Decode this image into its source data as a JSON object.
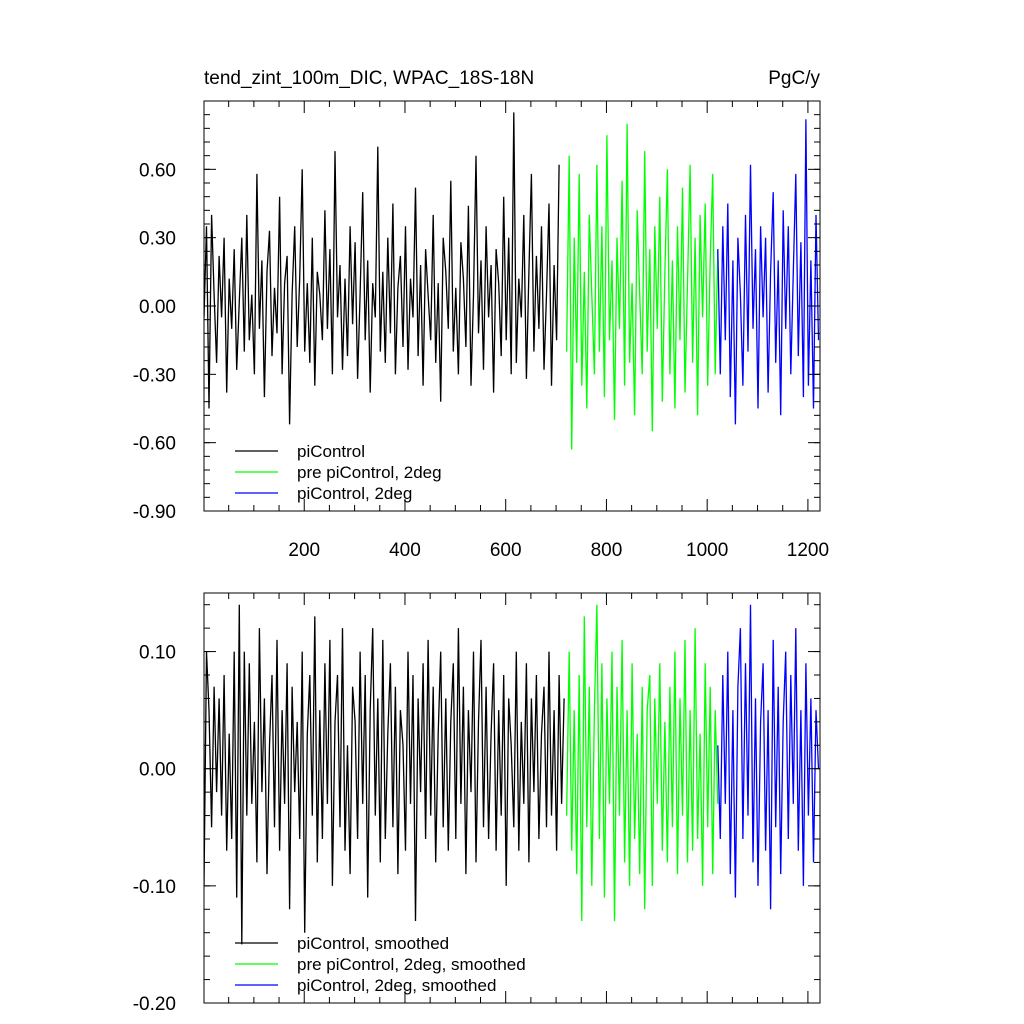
{
  "colors": {
    "piControl": "#000000",
    "pre_piControl_2deg": "#00ff00",
    "piControl_2deg": "#0000ff",
    "axis": "#000000",
    "background": "#ffffff"
  },
  "chart_data": [
    {
      "type": "line",
      "title": "tend_zint_100m_DIC, WPAC_18S-18N",
      "units": "PgC/y",
      "xlabel": "",
      "ylabel": "",
      "xlim": [
        1,
        1224
      ],
      "ylim": [
        -0.9,
        0.9
      ],
      "grid": false,
      "legend_position": "bottom-left",
      "x_ticks": [
        200,
        400,
        600,
        800,
        1000,
        1200
      ],
      "x_tick_labels": [
        "200",
        "400",
        "600",
        "800",
        "1000",
        "1200"
      ],
      "y_ticks": [
        -0.9,
        -0.6,
        -0.3,
        0.0,
        0.3,
        0.6
      ],
      "y_tick_labels": [
        "-0.90",
        "-0.60",
        "-0.30",
        "0.00",
        "0.30",
        "0.60"
      ],
      "series": [
        {
          "name": "piControl",
          "color": "#000000",
          "x_start": 1,
          "x_step": 5,
          "values": [
            -0.05,
            0.35,
            -0.45,
            0.4,
            0.05,
            -0.25,
            0.22,
            -0.05,
            0.3,
            -0.38,
            0.12,
            -0.1,
            0.25,
            -0.28,
            0.02,
            0.3,
            -0.2,
            0.4,
            -0.15,
            0.05,
            -0.3,
            0.58,
            -0.1,
            0.2,
            -0.4,
            0.15,
            0.33,
            -0.22,
            0.08,
            -0.12,
            0.48,
            -0.3,
            0.1,
            0.22,
            -0.52,
            0.05,
            0.35,
            -0.18,
            0.12,
            0.6,
            -0.2,
            0.1,
            -0.25,
            0.3,
            -0.35,
            0.15,
            0.05,
            -0.15,
            0.42,
            -0.1,
            0.25,
            -0.3,
            0.68,
            -0.05,
            0.18,
            -0.28,
            0.12,
            -0.22,
            0.35,
            -0.08,
            0.28,
            -0.32,
            0.05,
            0.5,
            -0.15,
            0.2,
            -0.38,
            0.1,
            -0.05,
            0.7,
            -0.2,
            0.15,
            -0.25,
            0.3,
            -0.12,
            0.45,
            -0.3,
            0.08,
            0.22,
            -0.18,
            0.35,
            -0.28,
            0.12,
            -0.05,
            0.52,
            -0.22,
            0.18,
            -0.35,
            0.25,
            0.05,
            -0.15,
            0.4,
            -0.25,
            0.1,
            -0.42,
            0.3,
            0.15,
            -0.1,
            0.55,
            -0.2,
            0.08,
            -0.3,
            0.28,
            0.12,
            -0.18,
            0.44,
            -0.35,
            0.05,
            0.66,
            -0.12,
            0.2,
            -0.28,
            0.35,
            -0.05,
            0.18,
            -0.38,
            0.25,
            0.1,
            -0.22,
            0.48,
            -0.15,
            0.3,
            -0.3,
            0.85,
            -0.25,
            0.12,
            -0.05,
            0.4,
            -0.32,
            0.15,
            0.58,
            -0.2,
            0.22,
            -0.1,
            0.35,
            -0.28,
            0.05,
            0.45,
            -0.35,
            0.18,
            -0.15,
            0.62
          ]
        },
        {
          "name": "pre piControl, 2deg",
          "color": "#00ff00",
          "x_start": 721,
          "x_step": 5,
          "values": [
            -0.2,
            0.66,
            -0.63,
            0.3,
            -0.25,
            0.58,
            -0.35,
            0.15,
            -0.45,
            0.4,
            0.05,
            -0.3,
            0.62,
            -0.2,
            0.35,
            -0.4,
            0.75,
            -0.15,
            0.2,
            -0.5,
            0.3,
            -0.1,
            0.55,
            -0.35,
            0.8,
            -0.25,
            0.1,
            -0.48,
            0.42,
            0.05,
            -0.3,
            0.68,
            -0.2,
            0.25,
            -0.55,
            0.35,
            -0.1,
            0.48,
            -0.42,
            0.15,
            0.6,
            -0.3,
            0.2,
            -0.45,
            0.35,
            -0.15,
            0.52,
            -0.38,
            0.1,
            0.62,
            -0.25,
            0.3,
            -0.48,
            0.4,
            -0.05,
            0.45,
            -0.35,
            0.2,
            0.58,
            -0.3,
            0.25
          ]
        },
        {
          "name": "piControl, 2deg",
          "color": "#0000ff",
          "x_start": 1021,
          "x_step": 5,
          "values": [
            0.25,
            -0.3,
            0.35,
            -0.15,
            0.45,
            -0.4,
            0.2,
            -0.52,
            0.3,
            0.05,
            -0.35,
            0.4,
            -0.2,
            0.62,
            -0.1,
            0.25,
            -0.45,
            0.35,
            -0.05,
            0.3,
            -0.38,
            0.15,
            0.5,
            -0.25,
            0.2,
            -0.48,
            0.42,
            -0.1,
            0.35,
            -0.3,
            0.15,
            0.58,
            -0.22,
            0.28,
            -0.4,
            0.82,
            -0.35,
            0.2,
            -0.45,
            0.4,
            -0.15
          ]
        }
      ]
    },
    {
      "type": "line",
      "title": "",
      "xlabel": "",
      "ylabel": "",
      "xlim": [
        1,
        1224
      ],
      "ylim": [
        -0.2,
        0.15
      ],
      "grid": false,
      "legend_position": "bottom-left",
      "x_ticks": [
        200,
        400,
        600,
        800,
        1000,
        1200
      ],
      "x_tick_labels": [],
      "y_ticks": [
        -0.2,
        -0.1,
        0.0,
        0.1
      ],
      "y_tick_labels": [
        "-0.20",
        "-0.10",
        "0.00",
        "0.10"
      ],
      "series": [
        {
          "name": "piControl, smoothed",
          "color": "#000000",
          "x_start": 1,
          "x_step": 5,
          "values": [
            -0.1,
            0.1,
            0.05,
            -0.05,
            0.07,
            -0.02,
            0.06,
            -0.04,
            0.08,
            -0.07,
            0.03,
            -0.06,
            0.1,
            -0.11,
            0.14,
            -0.15,
            0.1,
            -0.04,
            0.09,
            -0.03,
            0.04,
            -0.08,
            0.12,
            -0.02,
            0.06,
            -0.09,
            0.02,
            0.08,
            -0.05,
            0.11,
            -0.07,
            0.05,
            -0.03,
            0.09,
            -0.12,
            0.07,
            -0.02,
            0.04,
            -0.06,
            0.1,
            -0.14,
            0.03,
            0.08,
            -0.04,
            0.13,
            -0.08,
            0.05,
            -0.06,
            0.09,
            -0.03,
            0.11,
            -0.1,
            0.04,
            0.08,
            -0.05,
            0.12,
            -0.07,
            0.02,
            -0.09,
            0.07,
            0.04,
            -0.06,
            0.1,
            -0.03,
            0.08,
            -0.11,
            0.05,
            0.12,
            -0.04,
            0.06,
            -0.08,
            0.11,
            -0.06,
            0.03,
            0.09,
            -0.05,
            0.07,
            -0.09,
            0.05,
            0.02,
            -0.07,
            0.1,
            -0.03,
            0.08,
            -0.13,
            0.06,
            -0.02,
            0.09,
            -0.06,
            0.11,
            -0.04,
            0.07,
            -0.08,
            0.03,
            0.1,
            -0.05,
            0.06,
            -0.07,
            0.04,
            0.09,
            -0.06,
            0.12,
            -0.03,
            0.07,
            -0.09,
            0.05,
            -0.02,
            0.1,
            -0.08,
            0.04,
            0.11,
            -0.05,
            0.07,
            -0.06,
            0.03,
            0.09,
            -0.07,
            0.05,
            -0.04,
            0.08,
            -0.1,
            0.06,
            0.02,
            -0.05,
            0.1,
            -0.07,
            0.04,
            -0.03,
            0.09,
            -0.08,
            0.06,
            -0.02,
            0.08,
            -0.06,
            0.03,
            0.07,
            -0.05,
            0.1,
            -0.04,
            0.05,
            -0.07,
            0.08,
            -0.03,
            0.06
          ]
        },
        {
          "name": "pre piControl, 2deg, smoothed",
          "color": "#00ff00",
          "x_start": 721,
          "x_step": 5,
          "values": [
            -0.04,
            0.1,
            -0.07,
            0.05,
            -0.09,
            0.08,
            -0.13,
            0.13,
            -0.05,
            0.07,
            -0.1,
            0.05,
            0.14,
            -0.06,
            0.09,
            -0.11,
            0.06,
            -0.03,
            0.1,
            -0.13,
            0.07,
            -0.04,
            0.11,
            -0.08,
            0.05,
            -0.1,
            0.09,
            -0.06,
            0.03,
            -0.09,
            0.07,
            -0.12,
            0.05,
            0.08,
            -0.1,
            0.06,
            -0.03,
            0.09,
            -0.07,
            0.04,
            -0.08,
            0.07,
            -0.05,
            0.1,
            -0.09,
            0.06,
            -0.04,
            0.11,
            -0.08,
            0.05,
            -0.07,
            0.12,
            -0.06,
            0.03,
            -0.1,
            0.09,
            -0.05,
            0.07,
            -0.09,
            0.05,
            -0.03
          ]
        },
        {
          "name": "piControl, 2deg, smoothed",
          "color": "#0000ff",
          "x_start": 1021,
          "x_step": 5,
          "values": [
            0.02,
            -0.06,
            0.08,
            -0.03,
            0.1,
            -0.09,
            0.05,
            -0.11,
            0.07,
            0.12,
            -0.06,
            0.09,
            -0.04,
            0.14,
            -0.08,
            0.06,
            -0.1,
            0.04,
            0.09,
            -0.07,
            0.05,
            -0.12,
            0.11,
            -0.05,
            0.07,
            -0.09,
            0.04,
            0.1,
            -0.06,
            0.08,
            -0.03,
            0.12,
            -0.07,
            0.05,
            -0.1,
            0.09,
            -0.04,
            0.06,
            -0.08,
            0.05,
            0.0
          ]
        }
      ]
    }
  ]
}
